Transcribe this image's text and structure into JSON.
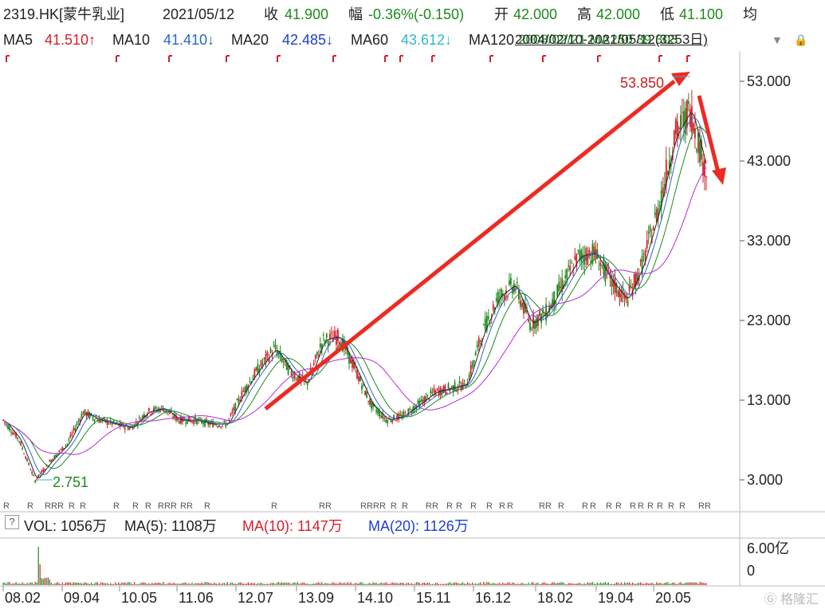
{
  "header": {
    "symbol": "2319.HK[蒙牛乳业]",
    "date": "2021/05/12",
    "close_label": "收",
    "close_value": "41.900",
    "change_label": "幅",
    "change_value": "-0.36%(-0.150)",
    "open_label": "开",
    "open_value": "42.000",
    "high_label": "高",
    "high_value": "42.000",
    "low_label": "低",
    "low_value": "41.100",
    "avg_label": "均"
  },
  "ma_row": {
    "ma5_label": "MA5",
    "ma5_value": "41.510↑",
    "ma10_label": "MA10",
    "ma10_value": "41.410↓",
    "ma20_label": "MA20",
    "ma20_value": "42.485↓",
    "ma60_label": "MA60",
    "ma60_value": "43.612↓",
    "ma120_label": "MA120",
    "range_text": "2004/02/10-2021/05/12(3253日)",
    "overlap_text": "2008/02/21 MA250 39.303"
  },
  "volume_row": {
    "help_icon": "?",
    "vol_label": "VOL: 1056万",
    "ma5": "MA(5): 1108万",
    "ma10": "MA(10): 1147万",
    "ma20": "MA(20): 1126万",
    "axis_max": "6.00亿",
    "axis_min": "0"
  },
  "annotations": {
    "peak_label": "53.850",
    "low_label": "2.751"
  },
  "colors": {
    "up": "#d4202a",
    "down": "#1c8a1c",
    "ma5": "#222222",
    "ma10": "#2a67c2",
    "ma20": "#1c8a1c",
    "ma60": "#b82ad0",
    "arrow": "#ee2a22"
  },
  "chart_data": {
    "type": "line",
    "title": "2319.HK[蒙牛乳业]",
    "xlabel": "",
    "ylabel": "",
    "y_ticks": [
      "53.000",
      "43.000",
      "33.000",
      "23.000",
      "13.000",
      "3.000"
    ],
    "ylim": [
      0,
      57
    ],
    "x_ticks": [
      "08.02",
      "09.04",
      "10.05",
      "11.06",
      "12.07",
      "13.09",
      "14.10",
      "15.11",
      "16.12",
      "18.02",
      "19.04",
      "20.05"
    ],
    "x": [
      "2008.02",
      "2008.06",
      "2008.10",
      "2009.01",
      "2009.04",
      "2009.08",
      "2010.01",
      "2010.05",
      "2010.10",
      "2011.03",
      "2011.06",
      "2011.10",
      "2012.03",
      "2012.07",
      "2012.11",
      "2013.03",
      "2013.06",
      "2013.09",
      "2014.01",
      "2014.05",
      "2014.08",
      "2014.10",
      "2014.12",
      "2015.04",
      "2015.08",
      "2015.11",
      "2016.03",
      "2016.07",
      "2016.12",
      "2017.03",
      "2017.07",
      "2017.10",
      "2018.02",
      "2018.06",
      "2018.10",
      "2019.01",
      "2019.04",
      "2019.08",
      "2019.12",
      "2020.03",
      "2020.05",
      "2020.09",
      "2020.12",
      "2021.02",
      "2021.05"
    ],
    "series": [
      {
        "name": "MA5",
        "values": [
          10.5,
          8.0,
          2.9,
          5.5,
          7.5,
          11.5,
          10.5,
          10.0,
          9.5,
          11.5,
          12.0,
          10.5,
          10.5,
          10.0,
          10.0,
          14.0,
          17.0,
          19.5,
          16.5,
          15.0,
          20.5,
          21.0,
          17.0,
          12.5,
          10.5,
          11.0,
          12.5,
          14.0,
          14.5,
          15.0,
          21.5,
          26.0,
          27.5,
          22.5,
          24.0,
          27.5,
          31.0,
          31.5,
          28.0,
          25.5,
          30.0,
          37.0,
          46.0,
          49.5,
          41.5
        ]
      },
      {
        "name": "MA10",
        "values": [
          10.3,
          8.3,
          3.2,
          5.2,
          7.2,
          11.2,
          10.6,
          10.1,
          9.6,
          11.3,
          11.8,
          10.7,
          10.5,
          10.1,
          10.1,
          13.6,
          16.6,
          19.1,
          16.8,
          15.3,
          20.0,
          20.6,
          17.4,
          12.9,
          10.7,
          11.0,
          12.4,
          13.8,
          14.4,
          14.8,
          21.0,
          25.6,
          27.0,
          23.0,
          23.8,
          27.0,
          30.6,
          31.2,
          28.4,
          26.0,
          29.4,
          36.4,
          45.2,
          49.0,
          41.4
        ]
      }
    ],
    "peak": 53.85,
    "trough": 2.751
  }
}
